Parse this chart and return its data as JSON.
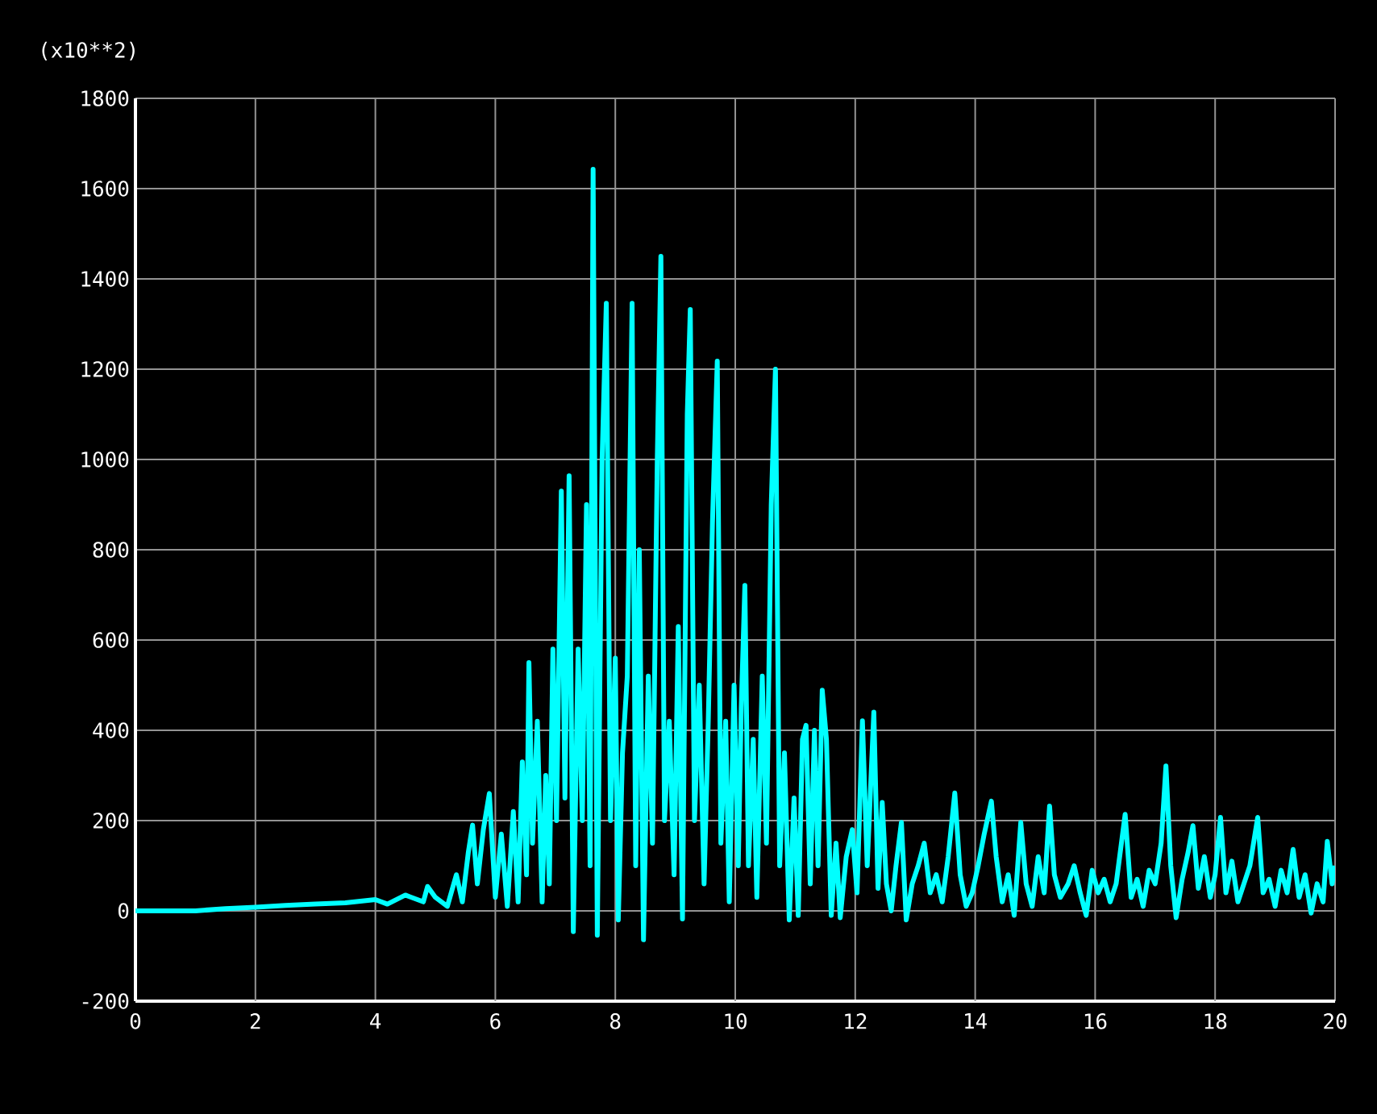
{
  "chart_data": {
    "type": "line",
    "annotations": [
      "(x10**2)"
    ],
    "color": "#00ffff",
    "grid": true,
    "xlim": [
      0,
      20
    ],
    "ylim": [
      -200,
      1800
    ],
    "xticks": [
      0,
      2,
      4,
      6,
      8,
      10,
      12,
      14,
      16,
      18,
      20
    ],
    "yticks": [
      -200,
      0,
      200,
      400,
      600,
      800,
      1000,
      1200,
      1400,
      1600,
      1800
    ],
    "x": [
      0,
      1,
      1.5,
      2,
      2.5,
      3,
      3.5,
      4,
      4.2,
      4.5,
      4.8,
      4.87,
      5.0,
      5.2,
      5.35,
      5.45,
      5.55,
      5.62,
      5.7,
      5.8,
      5.9,
      6.0,
      6.1,
      6.2,
      6.3,
      6.38,
      6.45,
      6.52,
      6.56,
      6.62,
      6.7,
      6.78,
      6.84,
      6.9,
      6.96,
      7.02,
      7.1,
      7.16,
      7.23,
      7.3,
      7.38,
      7.45,
      7.52,
      7.58,
      7.63,
      7.7,
      7.78,
      7.85,
      7.92,
      8.0,
      8.05,
      8.12,
      8.2,
      8.28,
      8.34,
      8.4,
      8.47,
      8.55,
      8.62,
      8.7,
      8.76,
      8.82,
      8.9,
      8.98,
      9.05,
      9.12,
      9.2,
      9.25,
      9.32,
      9.4,
      9.48,
      9.55,
      9.62,
      9.7,
      9.76,
      9.84,
      9.9,
      9.98,
      10.05,
      10.1,
      10.16,
      10.22,
      10.3,
      10.36,
      10.45,
      10.52,
      10.6,
      10.67,
      10.74,
      10.82,
      10.9,
      10.98,
      11.05,
      11.12,
      11.18,
      11.25,
      11.32,
      11.38,
      11.45,
      11.52,
      11.6,
      11.68,
      11.75,
      11.85,
      11.95,
      12.03,
      12.12,
      12.2,
      12.31,
      12.38,
      12.45,
      12.52,
      12.6,
      12.68,
      12.77,
      12.85,
      12.95,
      13.05,
      13.15,
      13.25,
      13.35,
      13.45,
      13.55,
      13.66,
      13.75,
      13.85,
      13.95,
      14.05,
      14.15,
      14.27,
      14.35,
      14.45,
      14.55,
      14.65,
      14.76,
      14.85,
      14.95,
      15.05,
      15.15,
      15.24,
      15.32,
      15.42,
      15.55,
      15.65,
      15.75,
      15.85,
      15.95,
      16.05,
      16.15,
      16.25,
      16.35,
      16.5,
      16.6,
      16.7,
      16.8,
      16.9,
      17.0,
      17.1,
      17.18,
      17.26,
      17.35,
      17.45,
      17.55,
      17.63,
      17.72,
      17.82,
      17.92,
      18.0,
      18.09,
      18.18,
      18.28,
      18.38,
      18.48,
      18.58,
      18.71,
      18.8,
      18.9,
      19.0,
      19.1,
      19.2,
      19.3,
      19.4,
      19.5,
      19.6,
      19.7,
      19.8,
      19.87,
      19.95,
      20
    ],
    "values": [
      0,
      0,
      5,
      8,
      12,
      15,
      18,
      25,
      15,
      35,
      20,
      54,
      30,
      10,
      80,
      20,
      130,
      190,
      60,
      180,
      260,
      30,
      170,
      10,
      220,
      20,
      330,
      80,
      550,
      150,
      420,
      20,
      300,
      60,
      580,
      200,
      930,
      250,
      964,
      -46,
      580,
      200,
      900,
      100,
      1643,
      -54,
      1000,
      1346,
      200,
      560,
      -20,
      350,
      520,
      1346,
      100,
      800,
      -64,
      520,
      150,
      1000,
      1450,
      200,
      420,
      80,
      630,
      -18,
      1100,
      1332,
      200,
      500,
      60,
      420,
      860,
      1218,
      150,
      420,
      20,
      500,
      100,
      450,
      721,
      100,
      380,
      30,
      520,
      150,
      900,
      1200,
      100,
      350,
      -20,
      250,
      -10,
      380,
      411,
      60,
      400,
      100,
      489,
      380,
      -10,
      150,
      -15,
      120,
      180,
      40,
      421,
      100,
      440,
      50,
      240,
      60,
      0,
      100,
      196,
      -20,
      60,
      100,
      150,
      40,
      80,
      20,
      120,
      261,
      80,
      10,
      40,
      100,
      170,
      243,
      120,
      20,
      80,
      -10,
      196,
      60,
      10,
      120,
      40,
      232,
      80,
      30,
      60,
      100,
      40,
      -10,
      90,
      40,
      70,
      20,
      60,
      214,
      30,
      70,
      10,
      90,
      60,
      150,
      321,
      100,
      -15,
      70,
      130,
      189,
      50,
      120,
      30,
      80,
      207,
      40,
      110,
      20,
      60,
      100,
      207,
      40,
      70,
      10,
      90,
      40,
      136,
      30,
      80,
      -5,
      60,
      20,
      154,
      60,
      100
    ]
  }
}
